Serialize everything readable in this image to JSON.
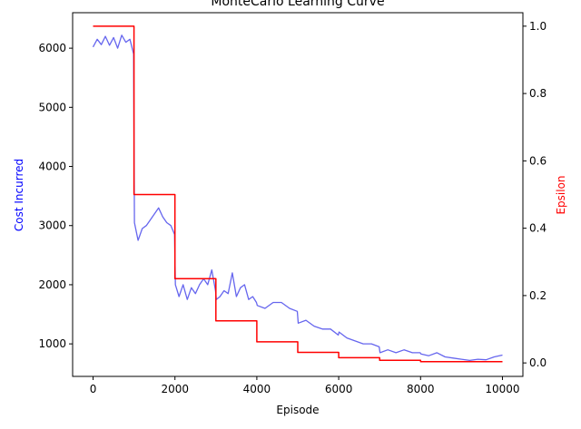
{
  "chart_data": {
    "type": "line",
    "title": "MonteCarlo Learning Curve",
    "xlabel": "Episode",
    "ylabel_left": "Cost Incurred",
    "ylabel_right": "Epsilon",
    "xlim": [
      -500,
      10500
    ],
    "ylim_left": [
      450,
      6600
    ],
    "ylim_right": [
      -0.04,
      1.04
    ],
    "xticks": [
      0,
      2000,
      4000,
      6000,
      8000,
      10000
    ],
    "xtick_labels": [
      "0",
      "2000",
      "4000",
      "6000",
      "8000",
      "10000"
    ],
    "yticks_left": [
      1000,
      2000,
      3000,
      4000,
      5000,
      6000
    ],
    "ytick_labels_left": [
      "1000",
      "2000",
      "3000",
      "4000",
      "5000",
      "6000"
    ],
    "yticks_right": [
      0.0,
      0.2,
      0.4,
      0.6,
      0.8,
      1.0
    ],
    "ytick_labels_right": [
      "0.0",
      "0.2",
      "0.4",
      "0.6",
      "0.8",
      "1.0"
    ],
    "grid": false,
    "series": [
      {
        "axis": "left",
        "color": "#6666ee",
        "x": [
          0,
          100,
          200,
          300,
          400,
          500,
          600,
          700,
          800,
          900,
          990,
          1010,
          1100,
          1200,
          1300,
          1400,
          1500,
          1600,
          1700,
          1800,
          1900,
          1990,
          2010,
          2100,
          2200,
          2300,
          2400,
          2500,
          2600,
          2700,
          2800,
          2900,
          2990,
          3010,
          3100,
          3200,
          3300,
          3400,
          3500,
          3600,
          3700,
          3800,
          3900,
          3990,
          4010,
          4200,
          4400,
          4600,
          4800,
          4990,
          5010,
          5200,
          5400,
          5600,
          5800,
          5990,
          6010,
          6200,
          6400,
          6600,
          6800,
          6990,
          7010,
          7200,
          7400,
          7600,
          7800,
          7990,
          8010,
          8200,
          8400,
          8600,
          8800,
          9000,
          9200,
          9400,
          9600,
          9800,
          10000
        ],
        "values": [
          6020,
          6150,
          6060,
          6200,
          6050,
          6180,
          6000,
          6220,
          6100,
          6150,
          5900,
          3050,
          2750,
          2950,
          3000,
          3100,
          3200,
          3300,
          3150,
          3050,
          3000,
          2850,
          2000,
          1800,
          2000,
          1750,
          1950,
          1850,
          2000,
          2100,
          2000,
          2250,
          1900,
          1750,
          1800,
          1900,
          1850,
          2200,
          1800,
          1950,
          2000,
          1750,
          1800,
          1700,
          1650,
          1600,
          1700,
          1700,
          1600,
          1550,
          1350,
          1400,
          1300,
          1250,
          1250,
          1150,
          1200,
          1100,
          1050,
          1000,
          1000,
          950,
          850,
          900,
          850,
          900,
          850,
          850,
          830,
          800,
          850,
          780,
          760,
          740,
          720,
          740,
          730,
          780,
          810
        ]
      },
      {
        "axis": "right",
        "color": "#ff0000",
        "step": true,
        "x": [
          0,
          1000,
          1000,
          2000,
          2000,
          3000,
          3000,
          4000,
          4000,
          5000,
          5000,
          6000,
          6000,
          7000,
          7000,
          8000,
          8000,
          10000
        ],
        "values": [
          1.0,
          1.0,
          0.5,
          0.5,
          0.25,
          0.25,
          0.125,
          0.125,
          0.0625,
          0.0625,
          0.03125,
          0.03125,
          0.0156,
          0.0156,
          0.0078,
          0.0078,
          0.0039,
          0.0039
        ]
      }
    ]
  }
}
